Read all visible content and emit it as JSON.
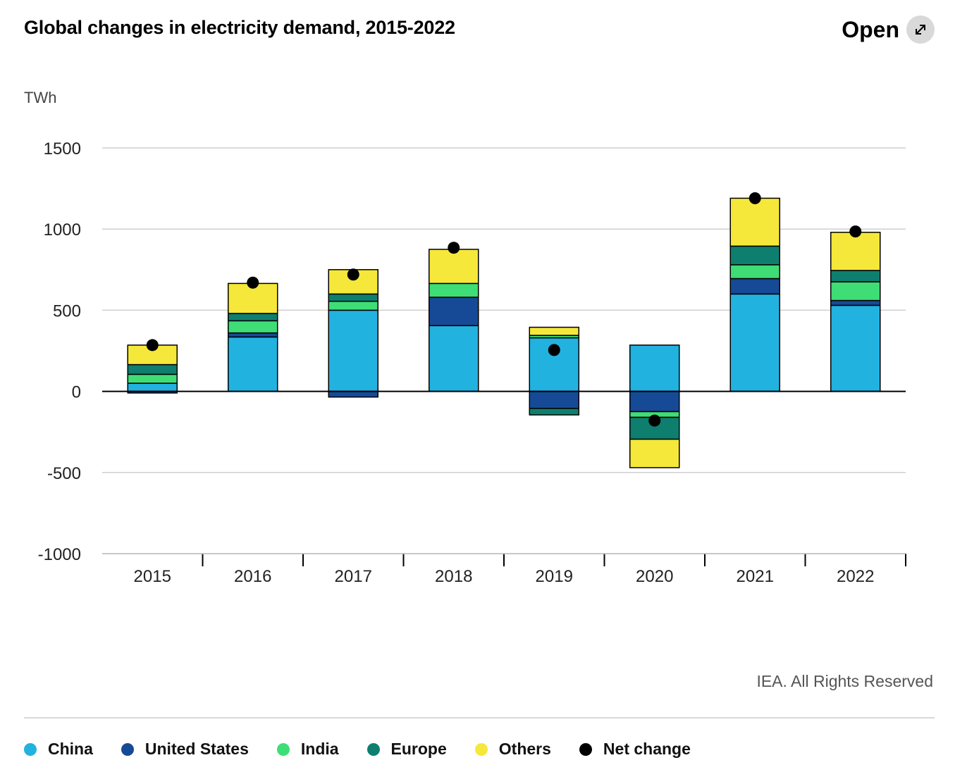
{
  "header": {
    "title": "Global changes in electricity demand, 2015-2022",
    "open_label": "Open",
    "open_icon": "expand-arrows-icon"
  },
  "credits": "IEA. All Rights Reserved",
  "chart_data": {
    "type": "bar",
    "stacked": true,
    "title": "Global changes in electricity demand, 2015-2022",
    "ylabel": "TWh",
    "xlabel": "",
    "ylim": [
      -1000,
      1500
    ],
    "yticks": [
      "1500",
      "1000",
      "500",
      "0",
      "-500",
      "-1000"
    ],
    "grid": true,
    "legend_position": "bottom",
    "categories": [
      "2015",
      "2016",
      "2017",
      "2018",
      "2019",
      "2020",
      "2021",
      "2022"
    ],
    "series": [
      {
        "name": "China",
        "color": "#22b2e0",
        "values": [
          50,
          335,
          500,
          405,
          330,
          285,
          600,
          530
        ]
      },
      {
        "name": "United States",
        "color": "#164a96",
        "values": [
          -10,
          25,
          -35,
          175,
          -105,
          -125,
          95,
          30
        ]
      },
      {
        "name": "India",
        "color": "#3fdd76",
        "values": [
          55,
          75,
          55,
          85,
          15,
          -35,
          85,
          115
        ]
      },
      {
        "name": "Europe",
        "color": "#0e7f6e",
        "values": [
          60,
          45,
          45,
          0,
          -40,
          -135,
          115,
          70
        ]
      },
      {
        "name": "Others",
        "color": "#f5e83a",
        "values": [
          120,
          185,
          150,
          210,
          50,
          -175,
          295,
          235
        ]
      }
    ],
    "net_change": {
      "name": "Net change",
      "color": "#000000",
      "values": [
        285,
        670,
        720,
        885,
        255,
        -180,
        1190,
        985
      ]
    }
  }
}
